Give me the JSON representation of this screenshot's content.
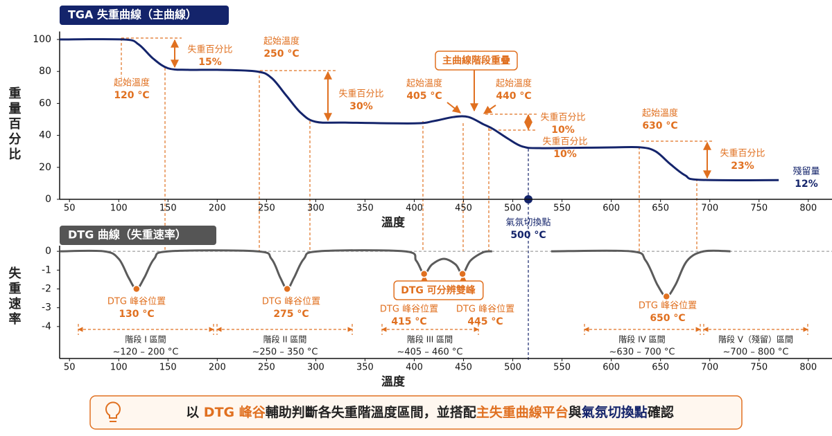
{
  "chart_data": [
    {
      "type": "line",
      "title": "TGA 失重曲線（主曲線）",
      "x_label": "溫度",
      "y_label": "重量百分比",
      "xlim": [
        40,
        810
      ],
      "xticks": [
        50,
        100,
        150,
        200,
        250,
        300,
        350,
        400,
        450,
        500,
        550,
        600,
        650,
        700,
        750,
        800
      ],
      "ylim": [
        0,
        105
      ],
      "yticks": [
        0,
        20,
        40,
        60,
        80,
        100
      ],
      "color": "#14246b",
      "x": [
        40,
        105,
        120,
        135,
        150,
        170,
        200,
        240,
        255,
        270,
        285,
        300,
        330,
        400,
        420,
        440,
        455,
        470,
        480,
        495,
        510,
        530,
        600,
        630,
        645,
        660,
        675,
        690,
        770
      ],
      "values": [
        100,
        100,
        97,
        88,
        82,
        81,
        81,
        80,
        76,
        65,
        54,
        48.5,
        48,
        47.5,
        49,
        51.5,
        51.5,
        47,
        44,
        38,
        33,
        32,
        32.5,
        32.5,
        30,
        22,
        15,
        12.2,
        12
      ],
      "annotations": [
        {
          "lines": [
            "起始溫度",
            "120 °C"
          ]
        },
        {
          "lines": [
            "失重百分比",
            "15%"
          ]
        },
        {
          "lines": [
            "起始溫度",
            "250 °C"
          ]
        },
        {
          "lines": [
            "失重百分比",
            "30%"
          ]
        },
        {
          "lines": [
            "主曲線階段重疊"
          ]
        },
        {
          "lines": [
            "起始溫度",
            "405 °C"
          ]
        },
        {
          "lines": [
            "起始溫度",
            "440 °C"
          ]
        },
        {
          "lines": [
            "失重百分比",
            "10%"
          ]
        },
        {
          "lines": [
            "失重百分比",
            "10%"
          ]
        },
        {
          "lines": [
            "起始溫度",
            "630 °C"
          ]
        },
        {
          "lines": [
            "失重百分比",
            "23%"
          ]
        },
        {
          "lines": [
            "殘留量",
            "12%"
          ]
        },
        {
          "lines": [
            "氣氛切換點",
            "500 °C"
          ]
        }
      ]
    },
    {
      "type": "line",
      "title": "DTG 曲線（失重速率）",
      "x_label": "溫度",
      "y_label": "失重速率",
      "xlim": [
        40,
        810
      ],
      "xticks": [
        50,
        100,
        150,
        200,
        250,
        300,
        350,
        400,
        450,
        500,
        550,
        600,
        650,
        700,
        750,
        800
      ],
      "ylim": [
        -5.7,
        0.3
      ],
      "yticks": [
        0,
        -1,
        -2,
        -3,
        -4
      ],
      "zero_line": true,
      "color": "#5b5b5b",
      "x": [
        40,
        85,
        100,
        110,
        118,
        126,
        136,
        151,
        240,
        255,
        264,
        271,
        278,
        288,
        303,
        390,
        402,
        410,
        418,
        430,
        442,
        449,
        457,
        470,
        479,
        510,
        539,
        620,
        635,
        647,
        656,
        665,
        677,
        694,
        721
      ],
      "values": [
        0,
        0,
        -0.4,
        -1.4,
        -2,
        -1.4,
        -0.4,
        0,
        0,
        -0.4,
        -1.4,
        -2,
        -1.4,
        -0.4,
        0,
        0,
        -0.5,
        -1.2,
        -0.7,
        -0.4,
        -0.7,
        -1.2,
        -0.5,
        -0.05,
        0,
        null,
        0,
        0,
        -0.5,
        -1.8,
        -2.4,
        -1.8,
        -0.5,
        0,
        0
      ],
      "annotations": [
        {
          "lines": [
            "DTG 峰谷位置",
            "130 °C"
          ]
        },
        {
          "lines": [
            "DTG 峰谷位置",
            "275 °C"
          ]
        },
        {
          "lines": [
            "DTG 峰谷位置",
            "415 °C"
          ]
        },
        {
          "lines": [
            "DTG 峰谷位置",
            "445 °C"
          ]
        },
        {
          "lines": [
            "DTG 可分辨雙峰"
          ]
        },
        {
          "lines": [
            "DTG 峰谷位置",
            "650 °C"
          ]
        },
        {
          "lines": [
            "階段 I 區間",
            "~120 – 200 °C"
          ]
        },
        {
          "lines": [
            "階段 II 區間",
            "~250 – 350 °C"
          ]
        },
        {
          "lines": [
            "階段 III 區間",
            "~405 – 460 °C"
          ]
        },
        {
          "lines": [
            "階段 IV 區間",
            "~630 – 700 °C"
          ]
        },
        {
          "lines": [
            "階段 V（殘留）區間",
            "~700 – 800 °C"
          ]
        }
      ]
    }
  ],
  "footer": {
    "segments": [
      {
        "text": "以 ",
        "color": "#222222"
      },
      {
        "text": "DTG 峰谷",
        "color": "#e07020"
      },
      {
        "text": "輔助判斷各失重階溫度區間，並搭配",
        "color": "#222222"
      },
      {
        "text": "主失重曲線平台",
        "color": "#e07020"
      },
      {
        "text": "與",
        "color": "#222222"
      },
      {
        "text": "氣氛切換點",
        "color": "#14246b"
      },
      {
        "text": "確認",
        "color": "#222222"
      }
    ]
  }
}
